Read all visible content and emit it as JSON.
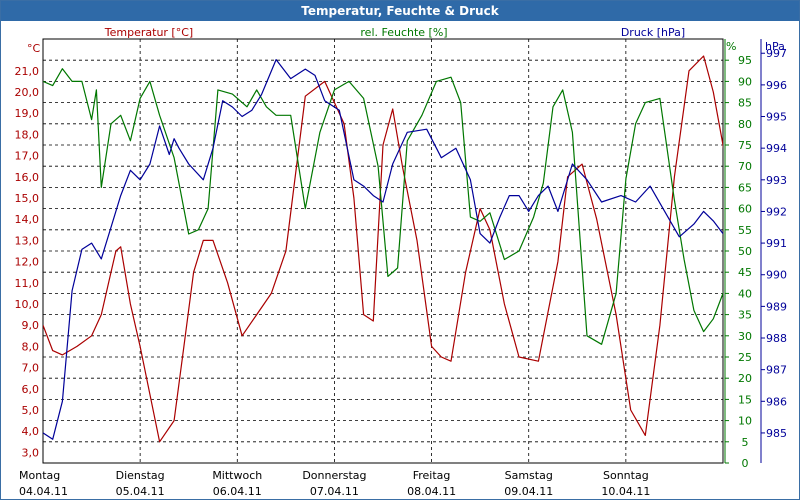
{
  "window": {
    "title": "Temperatur, Feuchte & Druck"
  },
  "chart_data": {
    "type": "line",
    "title": "Temperatur, Feuchte & Druck",
    "grid": true,
    "x_categories": [
      {
        "day": "Montag",
        "date": "04.04.11"
      },
      {
        "day": "Dienstag",
        "date": "05.04.11"
      },
      {
        "day": "Mittwoch",
        "date": "06.04.11"
      },
      {
        "day": "Donnerstag",
        "date": "07.04.11"
      },
      {
        "day": "Freitag",
        "date": "08.04.11"
      },
      {
        "day": "Samstag",
        "date": "09.04.11"
      },
      {
        "day": "Sonntag",
        "date": "10.04.11"
      }
    ],
    "axes": {
      "temperature": {
        "label": "Temperatur [°C]",
        "unit": "°C",
        "min": 2.5,
        "max": 22.5,
        "ticks": [
          "3,0",
          "4,0",
          "5,0",
          "6,0",
          "7,0",
          "8,0",
          "9,0",
          "10,0",
          "11,0",
          "12,0",
          "13,0",
          "14,0",
          "15,0",
          "16,0",
          "17,0",
          "18,0",
          "19,0",
          "20,0",
          "21,0"
        ],
        "tick_values": [
          3,
          4,
          5,
          6,
          7,
          8,
          9,
          10,
          11,
          12,
          13,
          14,
          15,
          16,
          17,
          18,
          19,
          20,
          21
        ]
      },
      "humidity": {
        "label": "rel. Feuchte [%]",
        "unit": "%",
        "min": 0,
        "max": 100,
        "ticks": [
          "0",
          "5",
          "10",
          "15",
          "20",
          "25",
          "30",
          "35",
          "40",
          "45",
          "50",
          "55",
          "60",
          "65",
          "70",
          "75",
          "80",
          "85",
          "90",
          "95"
        ],
        "tick_values": [
          0,
          5,
          10,
          15,
          20,
          25,
          30,
          35,
          40,
          45,
          50,
          55,
          60,
          65,
          70,
          75,
          80,
          85,
          90,
          95
        ]
      },
      "pressure": {
        "label": "Druck [hPa]",
        "unit": "hPa",
        "min": 984.05,
        "max": 997.45,
        "ticks": [
          "985",
          "986",
          "987",
          "988",
          "989",
          "990",
          "991",
          "992",
          "993",
          "994",
          "995",
          "996",
          "997"
        ],
        "tick_values": [
          985,
          986,
          987,
          988,
          989,
          990,
          991,
          992,
          993,
          994,
          995,
          996,
          997
        ]
      }
    },
    "series": [
      {
        "name": "Temperatur",
        "axis": "temperature",
        "color": "#aa0000",
        "x": [
          0,
          0.1,
          0.2,
          0.35,
          0.5,
          0.6,
          0.7,
          0.75,
          0.8,
          0.9,
          1.0,
          1.2,
          1.35,
          1.45,
          1.55,
          1.65,
          1.75,
          1.9,
          2.05,
          2.2,
          2.35,
          2.5,
          2.7,
          2.9,
          3.1,
          3.2,
          3.3,
          3.4,
          3.5,
          3.6,
          3.7,
          3.85,
          4.0,
          4.1,
          4.2,
          4.35,
          4.5,
          4.6,
          4.75,
          4.9,
          5.1,
          5.3,
          5.4,
          5.55,
          5.7,
          5.9,
          6.05,
          6.2,
          6.35,
          6.5,
          6.65,
          6.8,
          6.9,
          7.0,
          7.1,
          7.2,
          7.25
        ],
        "values": [
          9.0,
          7.8,
          7.6,
          8.0,
          8.5,
          9.5,
          11.5,
          12.5,
          12.7,
          10.0,
          8.0,
          3.5,
          4.5,
          8.0,
          11.5,
          13.0,
          13.0,
          11.0,
          8.5,
          9.5,
          10.5,
          12.5,
          19.8,
          20.5,
          18.5,
          15.0,
          9.5,
          9.2,
          17.5,
          19.2,
          16.5,
          13.0,
          8.0,
          7.5,
          7.3,
          11.5,
          14.5,
          13.5,
          10.0,
          7.5,
          7.3,
          12.0,
          16.0,
          16.6,
          14.0,
          9.5,
          5.0,
          3.8,
          9.0,
          16.0,
          21.0,
          21.7,
          20.0,
          17.5,
          14.5,
          12.0,
          11.5
        ]
      },
      {
        "name": "rel. Feuchte",
        "axis": "humidity",
        "color": "#007700",
        "x": [
          0,
          0.1,
          0.2,
          0.3,
          0.4,
          0.5,
          0.55,
          0.6,
          0.7,
          0.8,
          0.9,
          1.0,
          1.1,
          1.2,
          1.35,
          1.5,
          1.6,
          1.7,
          1.8,
          1.95,
          2.1,
          2.2,
          2.3,
          2.4,
          2.55,
          2.7,
          2.85,
          3.0,
          3.15,
          3.3,
          3.45,
          3.55,
          3.65,
          3.75,
          3.9,
          4.05,
          4.2,
          4.3,
          4.4,
          4.5,
          4.6,
          4.75,
          4.9,
          5.05,
          5.15,
          5.25,
          5.35,
          5.45,
          5.6,
          5.75,
          5.9,
          6.0,
          6.1,
          6.2,
          6.35,
          6.5,
          6.6,
          6.7,
          6.8,
          6.9,
          7.0,
          7.1,
          7.2,
          7.25
        ],
        "values": [
          90,
          89,
          93,
          90,
          90,
          81,
          88,
          65,
          80,
          82,
          76,
          86,
          90,
          82,
          72,
          54,
          55,
          60,
          88,
          87,
          84,
          88,
          84,
          82,
          82,
          60,
          78,
          88,
          90,
          86,
          70,
          44,
          46,
          76,
          82,
          90,
          91,
          85,
          58,
          57,
          59,
          48,
          50,
          58,
          66,
          84,
          88,
          78,
          30,
          28,
          40,
          67,
          80,
          85,
          86,
          62,
          48,
          36,
          31,
          34,
          40,
          48,
          60,
          68
        ]
      },
      {
        "name": "Druck",
        "axis": "pressure",
        "color": "#000099",
        "x": [
          0,
          0.1,
          0.2,
          0.3,
          0.4,
          0.5,
          0.6,
          0.7,
          0.8,
          0.9,
          1.0,
          1.1,
          1.2,
          1.3,
          1.35,
          1.4,
          1.5,
          1.65,
          1.75,
          1.85,
          1.95,
          2.05,
          2.15,
          2.25,
          2.4,
          2.55,
          2.7,
          2.8,
          2.9,
          3.05,
          3.2,
          3.3,
          3.4,
          3.5,
          3.6,
          3.75,
          3.95,
          4.1,
          4.25,
          4.4,
          4.5,
          4.6,
          4.7,
          4.8,
          4.9,
          5.0,
          5.1,
          5.2,
          5.3,
          5.45,
          5.6,
          5.75,
          5.95,
          6.1,
          6.25,
          6.4,
          6.55,
          6.7,
          6.8,
          6.9,
          7.0,
          7.1,
          7.2,
          7.25
        ],
        "values": [
          985.0,
          984.8,
          986.0,
          989.5,
          990.8,
          991.0,
          990.5,
          991.5,
          992.5,
          993.3,
          993.0,
          993.5,
          994.7,
          993.8,
          994.3,
          994.0,
          993.5,
          993.0,
          994.0,
          995.5,
          995.3,
          995.0,
          995.2,
          995.7,
          996.8,
          996.2,
          996.5,
          996.3,
          995.5,
          995.2,
          993.0,
          992.8,
          992.5,
          992.3,
          993.5,
          994.5,
          994.6,
          993.7,
          994.0,
          993.0,
          991.3,
          991.0,
          991.8,
          992.5,
          992.5,
          992.0,
          992.5,
          992.8,
          992.0,
          993.5,
          993.0,
          992.3,
          992.5,
          992.3,
          992.8,
          992.0,
          991.2,
          991.6,
          992.0,
          991.7,
          991.3,
          991.0,
          991.0,
          990.8
        ]
      }
    ]
  }
}
